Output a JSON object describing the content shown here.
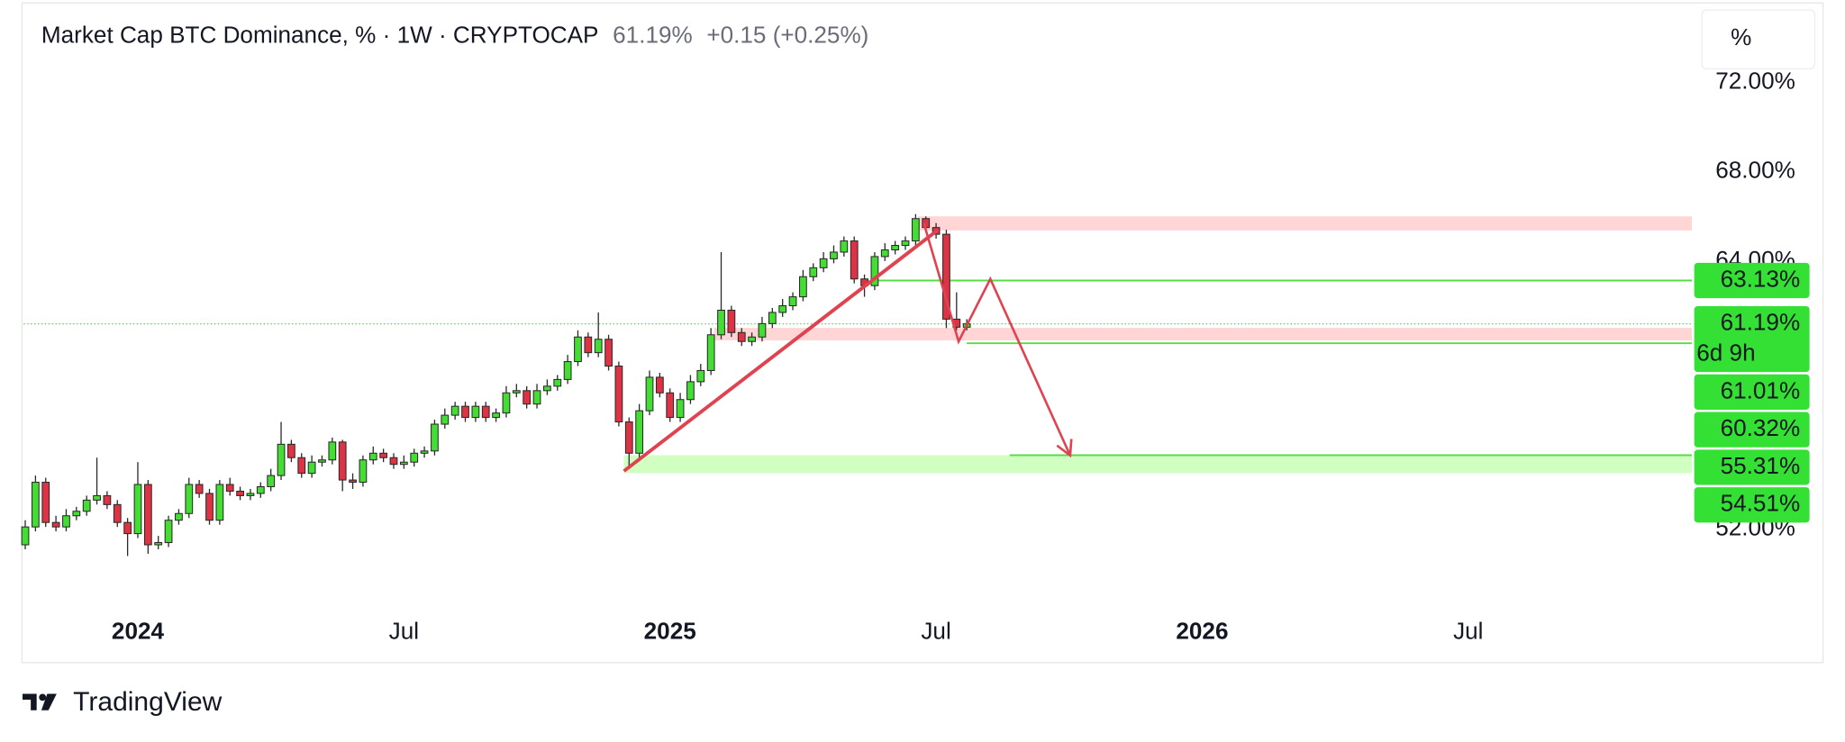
{
  "header": {
    "title": "Market Cap BTC Dominance, % · 1W · CRYPTOCAP",
    "price": "61.19%",
    "change": "+0.15 (+0.25%)",
    "scale_button": "%"
  },
  "chart_data": {
    "type": "candlestick",
    "up_color": "#44dd33",
    "down_color": "#dd3344",
    "outline_color": "#2a2a2a",
    "open": [
      51.3,
      52.1,
      54.1,
      52.3,
      52.1,
      52.6,
      52.8,
      53.3,
      53.5,
      53.1,
      52.3,
      51.8,
      54.0,
      51.3,
      51.4,
      52.4,
      52.7,
      54.0,
      53.6,
      52.4,
      54.0,
      53.7,
      53.5,
      53.6,
      53.9,
      54.4,
      55.8,
      55.2,
      54.5,
      55.0,
      55.1,
      55.9,
      54.2,
      54.1,
      55.1,
      55.4,
      55.2,
      54.9,
      55.0,
      55.4,
      55.5,
      56.7,
      57.1,
      57.5,
      57.0,
      57.5,
      57.0,
      57.2,
      58.1,
      58.2,
      57.6,
      58.2,
      58.4,
      58.7,
      59.5,
      60.6,
      59.9,
      60.5,
      59.3,
      56.8,
      55.4,
      57.3,
      58.8,
      58.1,
      57.0,
      57.8,
      58.6,
      59.1,
      60.7,
      61.8,
      60.8,
      60.4,
      60.6,
      61.2,
      61.7,
      62.0,
      62.4,
      63.3,
      63.7,
      64.1,
      64.4,
      64.9,
      63.2,
      62.9,
      64.2,
      64.5,
      64.7,
      64.9,
      65.9,
      65.5,
      65.2,
      61.4,
      61.04
    ],
    "high": [
      52.4,
      54.4,
      54.3,
      52.6,
      52.9,
      53.0,
      53.5,
      55.2,
      53.7,
      53.3,
      52.5,
      55.0,
      54.2,
      51.7,
      52.6,
      52.9,
      54.3,
      54.2,
      53.8,
      54.2,
      54.3,
      53.9,
      53.8,
      54.1,
      54.7,
      56.8,
      56.0,
      55.4,
      55.3,
      55.3,
      56.1,
      56.0,
      54.5,
      55.3,
      55.7,
      55.6,
      55.4,
      55.3,
      55.6,
      55.7,
      56.9,
      57.4,
      57.7,
      57.7,
      57.7,
      57.7,
      57.4,
      58.4,
      58.5,
      58.4,
      58.5,
      58.7,
      58.9,
      59.8,
      60.9,
      60.8,
      61.7,
      60.7,
      59.5,
      57.0,
      57.6,
      59.1,
      59.0,
      58.3,
      58.1,
      58.9,
      59.4,
      61.0,
      64.4,
      62.0,
      61.0,
      60.8,
      61.5,
      61.9,
      62.3,
      62.6,
      63.6,
      63.9,
      64.4,
      64.7,
      65.1,
      65.1,
      63.4,
      64.4,
      64.8,
      64.9,
      65.1,
      66.1,
      66.0,
      65.7,
      65.4,
      62.6,
      61.4
    ],
    "low": [
      51.1,
      51.9,
      52.1,
      51.9,
      51.9,
      52.4,
      52.6,
      53.1,
      52.9,
      52.1,
      50.8,
      51.6,
      50.9,
      51.1,
      51.2,
      52.2,
      52.5,
      53.4,
      52.2,
      52.2,
      53.5,
      53.3,
      53.3,
      53.4,
      53.7,
      54.2,
      55.0,
      54.3,
      54.3,
      54.8,
      54.9,
      53.7,
      53.8,
      53.9,
      54.9,
      55.0,
      54.7,
      54.7,
      54.8,
      55.2,
      55.3,
      56.5,
      56.9,
      56.8,
      56.8,
      56.8,
      56.8,
      57.0,
      57.9,
      57.4,
      57.4,
      58.0,
      58.2,
      58.5,
      59.3,
      59.7,
      59.7,
      59.1,
      56.6,
      54.7,
      55.2,
      57.1,
      57.9,
      56.8,
      56.8,
      57.6,
      58.4,
      58.9,
      60.5,
      60.6,
      60.2,
      60.2,
      60.4,
      61.0,
      61.5,
      61.8,
      62.2,
      63.1,
      63.5,
      63.9,
      64.2,
      63.0,
      62.4,
      62.7,
      64.0,
      64.3,
      64.5,
      64.7,
      65.3,
      65.0,
      61.0,
      60.9,
      60.9
    ],
    "close": [
      52.1,
      54.1,
      52.3,
      52.1,
      52.6,
      52.8,
      53.3,
      53.5,
      53.1,
      52.3,
      51.8,
      54.0,
      51.3,
      51.4,
      52.4,
      52.7,
      54.0,
      53.6,
      52.4,
      54.0,
      53.7,
      53.5,
      53.6,
      53.9,
      54.4,
      55.8,
      55.2,
      54.5,
      55.0,
      55.1,
      55.9,
      54.2,
      54.1,
      55.1,
      55.4,
      55.2,
      54.9,
      55.0,
      55.4,
      55.5,
      56.7,
      57.1,
      57.5,
      57.0,
      57.5,
      57.0,
      57.2,
      58.1,
      58.2,
      57.6,
      58.2,
      58.4,
      58.7,
      59.5,
      60.6,
      59.9,
      60.5,
      59.3,
      56.8,
      55.4,
      57.3,
      58.8,
      58.1,
      57.0,
      57.8,
      58.6,
      59.1,
      60.7,
      61.8,
      60.8,
      60.4,
      60.6,
      61.2,
      61.7,
      62.0,
      62.4,
      63.3,
      63.7,
      64.1,
      64.4,
      64.9,
      63.2,
      62.9,
      64.2,
      64.5,
      64.7,
      64.9,
      65.9,
      65.5,
      65.2,
      61.4,
      61.04,
      61.19
    ],
    "xlim": [
      -0.15,
      162.85
    ],
    "xticks": [
      {
        "value": 11,
        "label": "2024",
        "bold": true
      },
      {
        "value": 37,
        "label": "Jul"
      },
      {
        "value": 63,
        "label": "2025",
        "bold": true
      },
      {
        "value": 89,
        "label": "Jul"
      },
      {
        "value": 115,
        "label": "2026",
        "bold": true
      },
      {
        "value": 141,
        "label": "Jul"
      }
    ],
    "ylim": [
      49,
      72.5
    ],
    "yticks": [
      {
        "value": 52,
        "label": "52.00%"
      },
      {
        "value": 64,
        "label": "64.00%"
      },
      {
        "value": 68,
        "label": "68.00%"
      },
      {
        "value": 72,
        "label": "72.00%"
      }
    ],
    "price_labels": [
      {
        "value": 63.13,
        "label": "63.13%"
      },
      {
        "value": 61.19,
        "label": "61.19%",
        "countdown": "6d 9h"
      },
      {
        "value": 61.01,
        "label": "61.01%"
      },
      {
        "value": 60.32,
        "label": "60.32%"
      },
      {
        "value": 55.31,
        "label": "55.31%"
      },
      {
        "value": 54.51,
        "label": "54.51%"
      }
    ],
    "label_color": "#33e033",
    "zones": [
      {
        "low": 65.37,
        "high": 66.0,
        "start": 87.2,
        "color": "#ffd0d0"
      },
      {
        "low": 60.45,
        "high": 61.01,
        "start": 67.3,
        "color": "#ffd0d0"
      },
      {
        "low": 54.51,
        "high": 55.31,
        "start": 58.5,
        "color": "#ccffbb"
      }
    ],
    "levels": [
      {
        "value": 63.13,
        "start": 83.2,
        "color": "#55dd44"
      },
      {
        "value": 60.32,
        "start": 92.0,
        "color": "#55dd44"
      },
      {
        "value": 55.31,
        "start": 96.2,
        "color": "#55dd44"
      }
    ],
    "trend_line": {
      "x": [
        58.5,
        89.2
      ],
      "y": [
        54.6,
        65.4
      ],
      "color": "#e0434f"
    },
    "arrow": {
      "x": [
        87.8,
        91.2,
        94.3,
        102.1
      ],
      "y": [
        65.7,
        60.4,
        63.2,
        55.3
      ],
      "color": "#e0434f"
    }
  },
  "footer": {
    "brand": "TradingView"
  }
}
